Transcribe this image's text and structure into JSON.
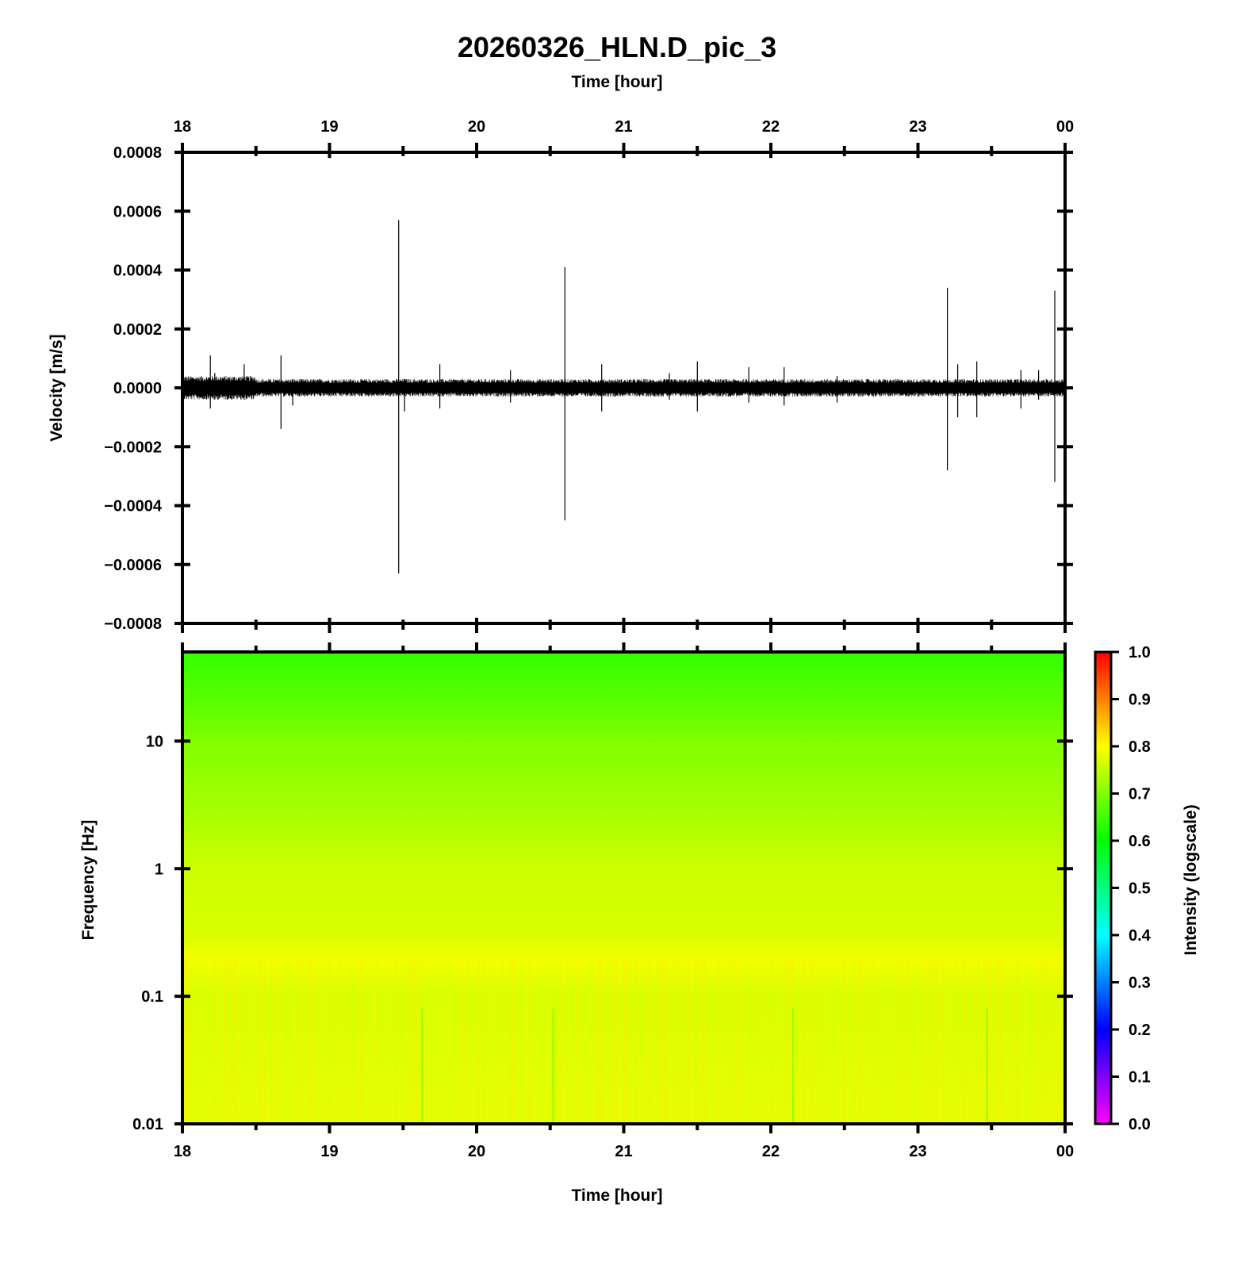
{
  "chart_data": [
    {
      "type": "line",
      "title": "20260326_HLN.D_pic_3",
      "xlabel": "Time [hour]",
      "ylabel": "Velocity [m/s]",
      "x_ticks": [
        "18",
        "19",
        "20",
        "21",
        "22",
        "23",
        "00"
      ],
      "x_range_hours": [
        18,
        24
      ],
      "y_ticks": [
        "0.0008",
        "0.0006",
        "0.0004",
        "0.0002",
        "0.0000",
        "−0.0002",
        "−0.0004",
        "−0.0006",
        "−0.0008"
      ],
      "y_tick_values": [
        0.0008,
        0.0006,
        0.0004,
        0.0002,
        0.0,
        -0.0002,
        -0.0004,
        -0.0006,
        -0.0008
      ],
      "ylim": [
        -0.0008,
        0.0008
      ],
      "noise_band": {
        "min": -3e-05,
        "max": 3e-05
      },
      "spikes": [
        {
          "x": 18.19,
          "max": 0.00011,
          "min": -7e-05
        },
        {
          "x": 18.22,
          "max": 5e-05,
          "min": -4e-05
        },
        {
          "x": 18.42,
          "max": 8e-05,
          "min": -4e-05
        },
        {
          "x": 18.67,
          "max": 0.00011,
          "min": -0.00014
        },
        {
          "x": 18.75,
          "max": 3e-05,
          "min": -6e-05
        },
        {
          "x": 19.47,
          "max": 0.00057,
          "min": -0.00063
        },
        {
          "x": 19.51,
          "max": 3e-05,
          "min": -8e-05
        },
        {
          "x": 19.75,
          "max": 8e-05,
          "min": -7e-05
        },
        {
          "x": 20.23,
          "max": 6e-05,
          "min": -5e-05
        },
        {
          "x": 20.6,
          "max": 0.00041,
          "min": -0.00045
        },
        {
          "x": 20.85,
          "max": 8e-05,
          "min": -8e-05
        },
        {
          "x": 21.31,
          "max": 5e-05,
          "min": -4e-05
        },
        {
          "x": 21.5,
          "max": 9e-05,
          "min": -8e-05
        },
        {
          "x": 21.85,
          "max": 7e-05,
          "min": -5e-05
        },
        {
          "x": 22.09,
          "max": 7e-05,
          "min": -6e-05
        },
        {
          "x": 22.45,
          "max": 4e-05,
          "min": -5e-05
        },
        {
          "x": 23.2,
          "max": 0.00034,
          "min": -0.00028
        },
        {
          "x": 23.27,
          "max": 8e-05,
          "min": -0.0001
        },
        {
          "x": 23.4,
          "max": 9e-05,
          "min": -0.0001
        },
        {
          "x": 23.7,
          "max": 6e-05,
          "min": -7e-05
        },
        {
          "x": 23.82,
          "max": 6e-05,
          "min": -4e-05
        },
        {
          "x": 23.93,
          "max": 0.00033,
          "min": -0.00032
        }
      ]
    },
    {
      "type": "heatmap",
      "xlabel": "Time [hour]",
      "ylabel": "Frequency [Hz]",
      "x_ticks": [
        "18",
        "19",
        "20",
        "21",
        "22",
        "23",
        "00"
      ],
      "x_range_hours": [
        18,
        24
      ],
      "y_scale": "log",
      "y_ticks": [
        "10",
        "1",
        "0.1",
        "0.01"
      ],
      "y_tick_values": [
        10,
        1,
        0.1,
        0.01
      ],
      "ylim": [
        0.01,
        50
      ],
      "colorbar": {
        "label": "Intensity (logscale)",
        "ticks": [
          "1.0",
          "0.9",
          "0.8",
          "0.7",
          "0.6",
          "0.5",
          "0.4",
          "0.3",
          "0.2",
          "0.1",
          "0.0"
        ],
        "range": [
          0.0,
          1.0
        ],
        "colors": [
          "#ff00ff",
          "#7f00ff",
          "#0000ff",
          "#0080ff",
          "#00ffff",
          "#00ff80",
          "#00ff00",
          "#80ff00",
          "#ffff00",
          "#ff8000",
          "#ff0000"
        ]
      },
      "intensity_profile": [
        {
          "freq": 50,
          "intensity": 0.64
        },
        {
          "freq": 20,
          "intensity": 0.67
        },
        {
          "freq": 10,
          "intensity": 0.7
        },
        {
          "freq": 3,
          "intensity": 0.73
        },
        {
          "freq": 1,
          "intensity": 0.76
        },
        {
          "freq": 0.3,
          "intensity": 0.77
        },
        {
          "freq": 0.2,
          "intensity": 0.79
        },
        {
          "freq": 0.1,
          "intensity": 0.77
        },
        {
          "freq": 0.01,
          "intensity": 0.78
        }
      ],
      "low_intensity_stripes_hours": [
        19.63,
        20.52,
        22.15,
        23.47
      ]
    }
  ]
}
